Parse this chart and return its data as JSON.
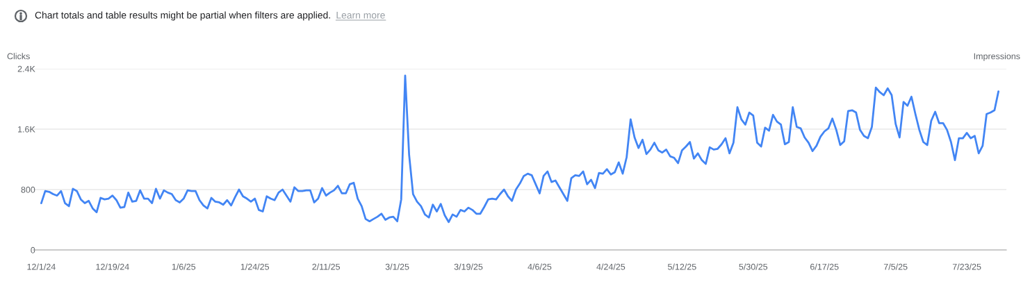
{
  "chart_data": {
    "type": "line",
    "title": "Chart totals and table results might be partial when filters are applied.",
    "annotations": [
      "Learn more"
    ],
    "ylabel": "Clicks",
    "y2label": "Impressions",
    "x": [
      "2024-12-01",
      "2024-12-02",
      "2024-12-03",
      "2024-12-04",
      "2024-12-05",
      "2024-12-06",
      "2024-12-07",
      "2024-12-08",
      "2024-12-09",
      "2024-12-10",
      "2024-12-11",
      "2024-12-12",
      "2024-12-13",
      "2024-12-14",
      "2024-12-15",
      "2024-12-16",
      "2024-12-17",
      "2024-12-18",
      "2024-12-19",
      "2024-12-20",
      "2024-12-21",
      "2024-12-22",
      "2024-12-23",
      "2024-12-24",
      "2024-12-25",
      "2024-12-26",
      "2024-12-27",
      "2024-12-28",
      "2024-12-29",
      "2024-12-30",
      "2024-12-31",
      "2025-01-01",
      "2025-01-02",
      "2025-01-03",
      "2025-01-04",
      "2025-01-05",
      "2025-01-06",
      "2025-01-07",
      "2025-01-08",
      "2025-01-09",
      "2025-01-10",
      "2025-01-11",
      "2025-01-12",
      "2025-01-13",
      "2025-01-14",
      "2025-01-15",
      "2025-01-16",
      "2025-01-17",
      "2025-01-18",
      "2025-01-19",
      "2025-01-20",
      "2025-01-21",
      "2025-01-22",
      "2025-01-23",
      "2025-01-24",
      "2025-01-25",
      "2025-01-26",
      "2025-01-27",
      "2025-01-28",
      "2025-01-29",
      "2025-01-30",
      "2025-01-31",
      "2025-02-01",
      "2025-02-02",
      "2025-02-03",
      "2025-02-04",
      "2025-02-05",
      "2025-02-06",
      "2025-02-07",
      "2025-02-08",
      "2025-02-09",
      "2025-02-10",
      "2025-02-11",
      "2025-02-12",
      "2025-02-13",
      "2025-02-14",
      "2025-02-15",
      "2025-02-16",
      "2025-02-17",
      "2025-02-18",
      "2025-02-19",
      "2025-02-20",
      "2025-02-21",
      "2025-02-22",
      "2025-02-23",
      "2025-02-24",
      "2025-02-25",
      "2025-02-26",
      "2025-02-27",
      "2025-02-28",
      "2025-03-01",
      "2025-03-02",
      "2025-03-03",
      "2025-03-04",
      "2025-03-05",
      "2025-03-06",
      "2025-03-07",
      "2025-03-08",
      "2025-03-09",
      "2025-03-10",
      "2025-03-11",
      "2025-03-12",
      "2025-03-13",
      "2025-03-14",
      "2025-03-15",
      "2025-03-16",
      "2025-03-17",
      "2025-03-18",
      "2025-03-19",
      "2025-03-20",
      "2025-03-21",
      "2025-03-22",
      "2025-03-23",
      "2025-03-24",
      "2025-03-25",
      "2025-03-26",
      "2025-03-27",
      "2025-03-28",
      "2025-03-29",
      "2025-03-30",
      "2025-03-31",
      "2025-04-01",
      "2025-04-02",
      "2025-04-03",
      "2025-04-04",
      "2025-04-05",
      "2025-04-06",
      "2025-04-07",
      "2025-04-08",
      "2025-04-09",
      "2025-04-10",
      "2025-04-11",
      "2025-04-12",
      "2025-04-13",
      "2025-04-14",
      "2025-04-15",
      "2025-04-16",
      "2025-04-17",
      "2025-04-18",
      "2025-04-19",
      "2025-04-20",
      "2025-04-21",
      "2025-04-22",
      "2025-04-23",
      "2025-04-24",
      "2025-04-25",
      "2025-04-26",
      "2025-04-27",
      "2025-04-28",
      "2025-04-29",
      "2025-04-30",
      "2025-05-01",
      "2025-05-02",
      "2025-05-03",
      "2025-05-04",
      "2025-05-05",
      "2025-05-06",
      "2025-05-07",
      "2025-05-08",
      "2025-05-09",
      "2025-05-10",
      "2025-05-11",
      "2025-05-12",
      "2025-05-13",
      "2025-05-14",
      "2025-05-15",
      "2025-05-16",
      "2025-05-17",
      "2025-05-18",
      "2025-05-19",
      "2025-05-20",
      "2025-05-21",
      "2025-05-22",
      "2025-05-23",
      "2025-05-24",
      "2025-05-25",
      "2025-05-26",
      "2025-05-27",
      "2025-05-28",
      "2025-05-29",
      "2025-05-30",
      "2025-05-31",
      "2025-06-01",
      "2025-06-02",
      "2025-06-03",
      "2025-06-04",
      "2025-06-05",
      "2025-06-06",
      "2025-06-07",
      "2025-06-08",
      "2025-06-09",
      "2025-06-10",
      "2025-06-11",
      "2025-06-12",
      "2025-06-13",
      "2025-06-14",
      "2025-06-15",
      "2025-06-16",
      "2025-06-17",
      "2025-06-18",
      "2025-06-19",
      "2025-06-20",
      "2025-06-21",
      "2025-06-22",
      "2025-06-23",
      "2025-06-24",
      "2025-06-25",
      "2025-06-26",
      "2025-06-27",
      "2025-06-28",
      "2025-06-29",
      "2025-06-30",
      "2025-07-01",
      "2025-07-02",
      "2025-07-03",
      "2025-07-04",
      "2025-07-05",
      "2025-07-06",
      "2025-07-07",
      "2025-07-08",
      "2025-07-09",
      "2025-07-10",
      "2025-07-11",
      "2025-07-12",
      "2025-07-13",
      "2025-07-14",
      "2025-07-15",
      "2025-07-16",
      "2025-07-17",
      "2025-07-18",
      "2025-07-19",
      "2025-07-20",
      "2025-07-21",
      "2025-07-22",
      "2025-07-23",
      "2025-07-24",
      "2025-07-25",
      "2025-07-26",
      "2025-07-27",
      "2025-07-28",
      "2025-07-29",
      "2025-07-30",
      "2025-07-31"
    ],
    "series": [
      {
        "color": "#4285f4",
        "values": [
          620,
          780,
          770,
          740,
          720,
          780,
          620,
          580,
          810,
          780,
          670,
          620,
          650,
          550,
          500,
          690,
          670,
          680,
          720,
          660,
          560,
          570,
          760,
          640,
          650,
          790,
          680,
          680,
          620,
          810,
          680,
          790,
          760,
          740,
          660,
          630,
          680,
          790,
          780,
          780,
          660,
          590,
          550,
          690,
          640,
          630,
          600,
          660,
          590,
          700,
          800,
          710,
          680,
          640,
          680,
          530,
          510,
          710,
          680,
          660,
          760,
          800,
          720,
          640,
          830,
          780,
          780,
          790,
          790,
          630,
          680,
          820,
          720,
          760,
          790,
          850,
          750,
          750,
          870,
          890,
          680,
          580,
          410,
          380,
          410,
          440,
          480,
          400,
          430,
          440,
          380,
          670,
          2310,
          1260,
          740,
          640,
          580,
          470,
          430,
          600,
          510,
          610,
          460,
          370,
          470,
          440,
          530,
          510,
          560,
          530,
          480,
          480,
          570,
          670,
          680,
          670,
          740,
          800,
          710,
          650,
          800,
          880,
          980,
          1010,
          990,
          870,
          750,
          980,
          1040,
          900,
          920,
          830,
          740,
          650,
          950,
          990,
          980,
          1040,
          870,
          930,
          820,
          1020,
          1010,
          1070,
          1000,
          1030,
          1160,
          1010,
          1230,
          1730,
          1490,
          1350,
          1460,
          1270,
          1330,
          1420,
          1320,
          1290,
          1330,
          1240,
          1220,
          1150,
          1320,
          1370,
          1430,
          1210,
          1280,
          1190,
          1140,
          1360,
          1330,
          1340,
          1400,
          1480,
          1280,
          1420,
          1890,
          1730,
          1660,
          1820,
          1780,
          1420,
          1370,
          1620,
          1580,
          1790,
          1700,
          1660,
          1400,
          1430,
          1890,
          1630,
          1610,
          1490,
          1420,
          1310,
          1380,
          1500,
          1570,
          1610,
          1740,
          1590,
          1390,
          1440,
          1840,
          1850,
          1820,
          1590,
          1510,
          1480,
          1630,
          2150,
          2090,
          2050,
          2140,
          2050,
          1670,
          1490,
          1960,
          1910,
          2030,
          1800,
          1590,
          1430,
          1390,
          1710,
          1830,
          1680,
          1680,
          1590,
          1430,
          1190,
          1480,
          1480,
          1550,
          1480,
          1510,
          1280,
          1380,
          1800,
          1820,
          1850,
          2100
        ]
      }
    ],
    "xlim": [
      "2024-11-29",
      "2025-08-02"
    ],
    "xticks": [
      {
        "value": "2024-12-01",
        "label": "12/1/24"
      },
      {
        "value": "2024-12-19",
        "label": "12/19/24"
      },
      {
        "value": "2025-01-06",
        "label": "1/6/25"
      },
      {
        "value": "2025-01-24",
        "label": "1/24/25"
      },
      {
        "value": "2025-02-11",
        "label": "2/11/25"
      },
      {
        "value": "2025-03-01",
        "label": "3/1/25"
      },
      {
        "value": "2025-03-19",
        "label": "3/19/25"
      },
      {
        "value": "2025-04-06",
        "label": "4/6/25"
      },
      {
        "value": "2025-04-24",
        "label": "4/24/25"
      },
      {
        "value": "2025-05-12",
        "label": "5/12/25"
      },
      {
        "value": "2025-05-30",
        "label": "5/30/25"
      },
      {
        "value": "2025-06-17",
        "label": "6/17/25"
      },
      {
        "value": "2025-07-05",
        "label": "7/5/25"
      },
      {
        "value": "2025-07-23",
        "label": "7/23/25"
      }
    ],
    "ylim": [
      0,
      2400
    ],
    "yticks": [
      0,
      800,
      {
        "value": 1600,
        "label": "1.6K"
      },
      {
        "value": 2400,
        "label": "2.4K"
      }
    ],
    "grid": "y",
    "legend": false,
    "marker": "none",
    "line_style": "solid"
  }
}
